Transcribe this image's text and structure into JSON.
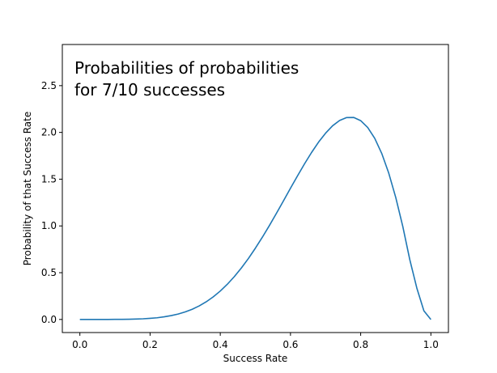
{
  "chart_data": {
    "type": "line",
    "title": "",
    "xlabel": "Success Rate",
    "ylabel": "Probability of that Success Rate",
    "annotation": [
      "Probabilities of probabilities",
      "for 7/10 successes"
    ],
    "xlim": [
      -0.05,
      1.05
    ],
    "ylim": [
      -0.14,
      2.94
    ],
    "x_ticks": [
      0.0,
      0.2,
      0.4,
      0.6,
      0.8,
      1.0
    ],
    "x_tick_labels": [
      "0.0",
      "0.2",
      "0.4",
      "0.6",
      "0.8",
      "1.0"
    ],
    "y_ticks": [
      0.0,
      0.5,
      1.0,
      1.5,
      2.0,
      2.5
    ],
    "y_tick_labels": [
      "0.0",
      "0.5",
      "1.0",
      "1.5",
      "2.0",
      "2.5"
    ],
    "grid": false,
    "series": [
      {
        "color": "#1f77b4",
        "x": [
          0.0,
          0.02,
          0.04,
          0.06,
          0.08,
          0.1,
          0.12,
          0.14,
          0.16,
          0.18,
          0.2,
          0.22,
          0.24,
          0.26,
          0.28,
          0.3,
          0.32,
          0.34,
          0.36,
          0.38,
          0.4,
          0.42,
          0.44,
          0.46,
          0.48,
          0.5,
          0.52,
          0.54,
          0.56,
          0.58,
          0.6,
          0.62,
          0.64,
          0.66,
          0.68,
          0.7,
          0.72,
          0.74,
          0.76,
          0.78,
          0.8,
          0.82,
          0.84,
          0.86,
          0.88,
          0.9,
          0.92,
          0.94,
          0.96,
          0.98,
          1.0
        ],
        "y": [
          0.0,
          0.0,
          0.0,
          0.0,
          0.0,
          0.001,
          0.001,
          0.002,
          0.004,
          0.007,
          0.012,
          0.018,
          0.028,
          0.041,
          0.058,
          0.081,
          0.109,
          0.145,
          0.189,
          0.242,
          0.304,
          0.376,
          0.458,
          0.55,
          0.651,
          0.762,
          0.88,
          1.005,
          1.135,
          1.268,
          1.403,
          1.535,
          1.664,
          1.785,
          1.896,
          1.992,
          2.071,
          2.128,
          2.159,
          2.16,
          2.126,
          2.053,
          1.937,
          1.775,
          1.564,
          1.303,
          0.994,
          0.638,
          0.335,
          0.093,
          0.0
        ]
      }
    ]
  }
}
